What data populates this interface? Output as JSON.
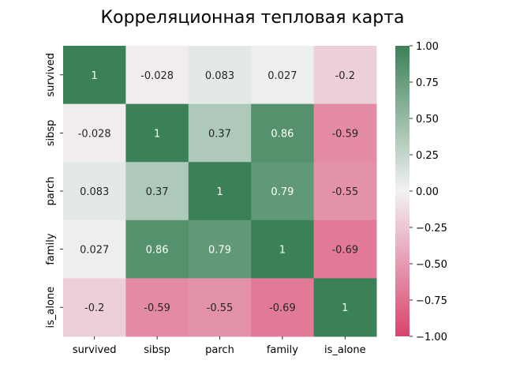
{
  "chart_data": {
    "type": "heatmap",
    "title": "Корреляционная тепловая карта",
    "row_labels": [
      "survived",
      "sibsp",
      "parch",
      "family",
      "is_alone"
    ],
    "col_labels": [
      "survived",
      "sibsp",
      "parch",
      "family",
      "is_alone"
    ],
    "values": [
      [
        1,
        -0.028,
        0.083,
        0.027,
        -0.2
      ],
      [
        -0.028,
        1,
        0.37,
        0.86,
        -0.59
      ],
      [
        0.083,
        0.37,
        1,
        0.79,
        -0.55
      ],
      [
        0.027,
        0.86,
        0.79,
        1,
        -0.69
      ],
      [
        -0.2,
        -0.59,
        -0.55,
        -0.69,
        1
      ]
    ],
    "value_labels": [
      [
        "1",
        "-0.028",
        "0.083",
        "0.027",
        "-0.2"
      ],
      [
        "-0.028",
        "1",
        "0.37",
        "0.86",
        "-0.59"
      ],
      [
        "0.083",
        "0.37",
        "1",
        "0.79",
        "-0.55"
      ],
      [
        "0.027",
        "0.86",
        "0.79",
        "1",
        "-0.69"
      ],
      [
        "-0.2",
        "-0.59",
        "-0.55",
        "-0.69",
        "1"
      ]
    ],
    "vmin": -1,
    "vmax": 1,
    "colorbar_ticks": [
      1.0,
      0.75,
      0.5,
      0.25,
      0.0,
      -0.25,
      -0.5,
      -0.75,
      -1.0
    ],
    "colorbar_tick_labels": [
      "1.00",
      "0.75",
      "0.50",
      "0.25",
      "0.00",
      "−0.25",
      "−0.50",
      "−0.75",
      "−1.00"
    ],
    "colors": {
      "negative": "#d9436e",
      "center": "#f2f2f2",
      "positive": "#3b8157"
    }
  }
}
